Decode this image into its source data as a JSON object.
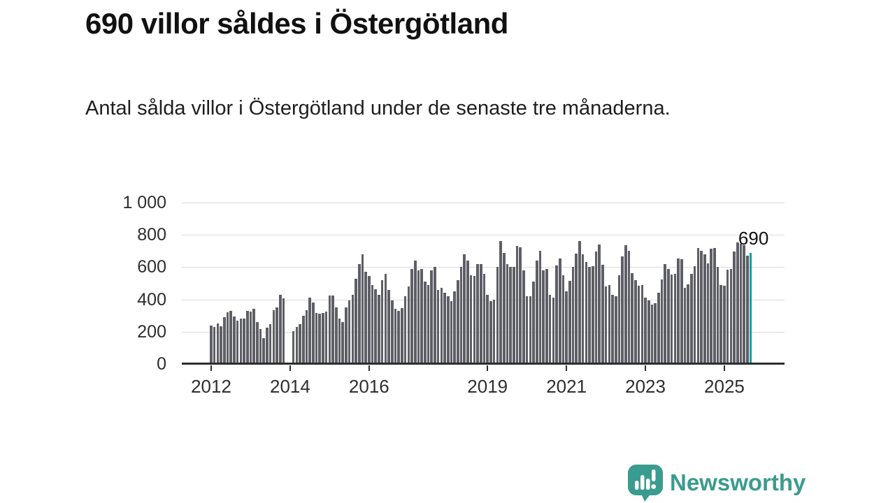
{
  "header": {
    "title": "690 villor såldes i Östergötland",
    "subtitle": "Antal sålda villor i Östergötland under de senaste tre månaderna."
  },
  "footer": {
    "brand": "Newsworthy",
    "logo_icon": "bar-chart-speech-bubble-icon"
  },
  "colors": {
    "bar": "#5e5e66",
    "highlight_bar": "#00a29e",
    "gridline": "#dadada",
    "axis": "#2d2d2d",
    "text": "#1b1b1b",
    "brand_teal": "#3a9b8f"
  },
  "chart_data": {
    "type": "bar",
    "title": "690 villor såldes i Östergötland",
    "subtitle": "Antal sålda villor i Östergötland under de senaste tre månaderna.",
    "xlabel": "",
    "ylabel": "",
    "x_unit": "month",
    "start_month": "2012-01",
    "end_month": "2025-09",
    "ylim": [
      0,
      1000
    ],
    "grid": true,
    "y_tick_values": [
      1000,
      800,
      600,
      400,
      200,
      0
    ],
    "y_tick_labels": [
      "1 000",
      "800",
      "600",
      "400",
      "200",
      "0"
    ],
    "x_tick_labels": [
      "2012",
      "2014",
      "2016",
      "2019",
      "2021",
      "2023",
      "2025"
    ],
    "x_tick_month_indices": [
      0,
      24,
      48,
      84,
      108,
      132,
      156
    ],
    "highlight_last": true,
    "last_value_label": "690",
    "values": [
      240,
      230,
      250,
      235,
      290,
      320,
      330,
      295,
      270,
      280,
      280,
      330,
      325,
      340,
      260,
      215,
      160,
      225,
      245,
      335,
      350,
      430,
      405,
      null,
      null,
      205,
      230,
      245,
      300,
      335,
      410,
      380,
      315,
      310,
      315,
      325,
      425,
      425,
      350,
      280,
      260,
      350,
      395,
      430,
      530,
      620,
      680,
      570,
      545,
      490,
      465,
      430,
      520,
      560,
      460,
      395,
      340,
      330,
      345,
      420,
      480,
      590,
      640,
      580,
      590,
      510,
      490,
      580,
      600,
      460,
      470,
      440,
      420,
      390,
      450,
      520,
      600,
      680,
      640,
      550,
      545,
      620,
      620,
      560,
      430,
      390,
      400,
      600,
      760,
      690,
      620,
      600,
      600,
      730,
      725,
      580,
      420,
      420,
      510,
      640,
      700,
      580,
      590,
      430,
      410,
      610,
      655,
      550,
      450,
      515,
      600,
      685,
      760,
      680,
      630,
      600,
      605,
      695,
      740,
      615,
      480,
      490,
      430,
      420,
      550,
      665,
      735,
      700,
      565,
      520,
      485,
      490,
      410,
      395,
      370,
      375,
      440,
      525,
      620,
      590,
      555,
      560,
      655,
      650,
      470,
      495,
      560,
      605,
      720,
      700,
      680,
      625,
      715,
      720,
      600,
      490,
      485,
      585,
      590,
      695,
      755,
      745,
      735,
      670,
      690
    ]
  }
}
